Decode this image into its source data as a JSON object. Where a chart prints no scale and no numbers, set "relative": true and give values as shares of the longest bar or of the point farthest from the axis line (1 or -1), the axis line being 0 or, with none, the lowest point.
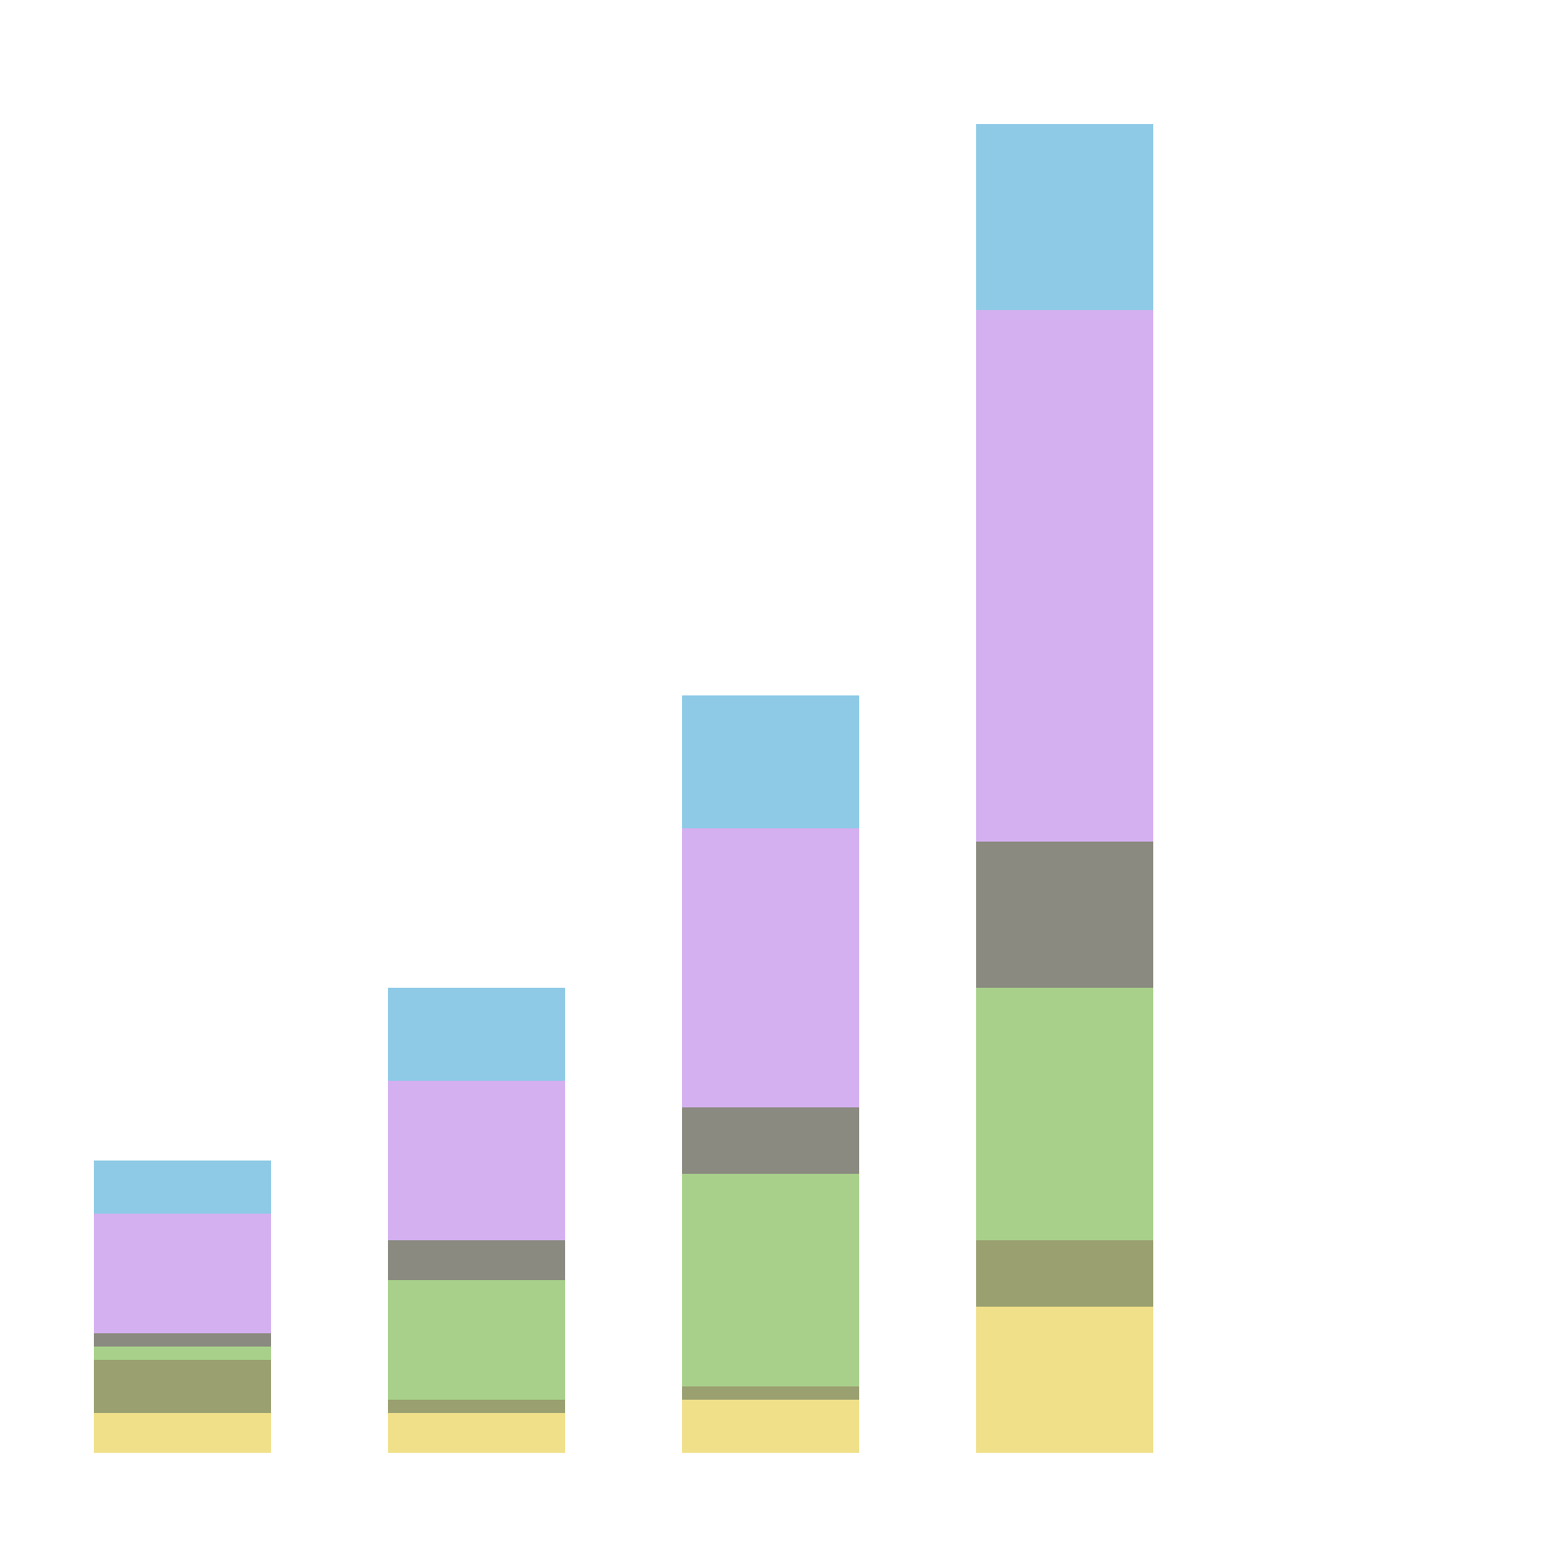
{
  "chart_data": {
    "type": "bar",
    "relative": true,
    "stacked": true,
    "categories": [
      null,
      null,
      null,
      null
    ],
    "series": [
      {
        "color": "#f0e08a",
        "values": [
          0.03,
          0.03,
          0.04,
          0.11
        ]
      },
      {
        "color": "#9aa070",
        "values": [
          0.04,
          0.01,
          0.01,
          0.05
        ]
      },
      {
        "color": "#a8d08a",
        "values": [
          0.01,
          0.09,
          0.16,
          0.19
        ]
      },
      {
        "color": "#8a8a80",
        "values": [
          0.01,
          0.03,
          0.05,
          0.11
        ]
      },
      {
        "color": "#d4b0f0",
        "values": [
          0.09,
          0.12,
          0.21,
          0.4
        ]
      },
      {
        "color": "#8ecae6",
        "values": [
          0.04,
          0.07,
          0.1,
          0.14
        ]
      }
    ]
  }
}
